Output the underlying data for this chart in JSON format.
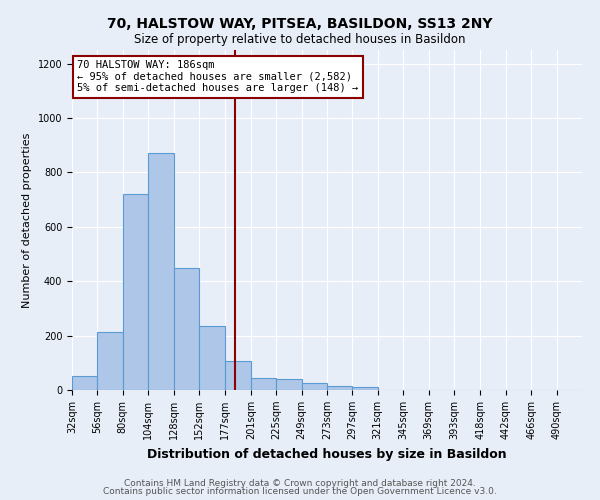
{
  "title1": "70, HALSTOW WAY, PITSEA, BASILDON, SS13 2NY",
  "title2": "Size of property relative to detached houses in Basildon",
  "xlabel": "Distribution of detached houses by size in Basildon",
  "ylabel": "Number of detached properties",
  "footnote1": "Contains HM Land Registry data © Crown copyright and database right 2024.",
  "footnote2": "Contains public sector information licensed under the Open Government Licence v3.0.",
  "annotation_title": "70 HALSTOW WAY: 186sqm",
  "annotation_line1": "← 95% of detached houses are smaller (2,582)",
  "annotation_line2": "5% of semi-detached houses are larger (148) →",
  "property_size": 186,
  "bar_edges": [
    32,
    56,
    80,
    104,
    128,
    152,
    177,
    201,
    225,
    249,
    273,
    297,
    321,
    345,
    369,
    393,
    418,
    442,
    466,
    490,
    514
  ],
  "bar_heights": [
    50,
    215,
    720,
    870,
    450,
    235,
    105,
    45,
    40,
    25,
    15,
    10,
    0,
    0,
    0,
    0,
    0,
    0,
    0,
    0
  ],
  "bar_color": "#aec6e8",
  "bar_edge_color": "#5b9bd5",
  "bar_linewidth": 0.8,
  "vline_x": 186,
  "vline_color": "#8b0000",
  "vline_linewidth": 1.5,
  "ylim": [
    0,
    1250
  ],
  "yticks": [
    0,
    200,
    400,
    600,
    800,
    1000,
    1200
  ],
  "background_color": "#e8eef8",
  "plot_background": "#e8eef8",
  "grid_color": "white",
  "title1_fontsize": 10,
  "title2_fontsize": 8.5,
  "xlabel_fontsize": 9,
  "ylabel_fontsize": 8,
  "annotation_fontsize": 7.5,
  "footnote_fontsize": 6.5,
  "tick_fontsize": 7
}
